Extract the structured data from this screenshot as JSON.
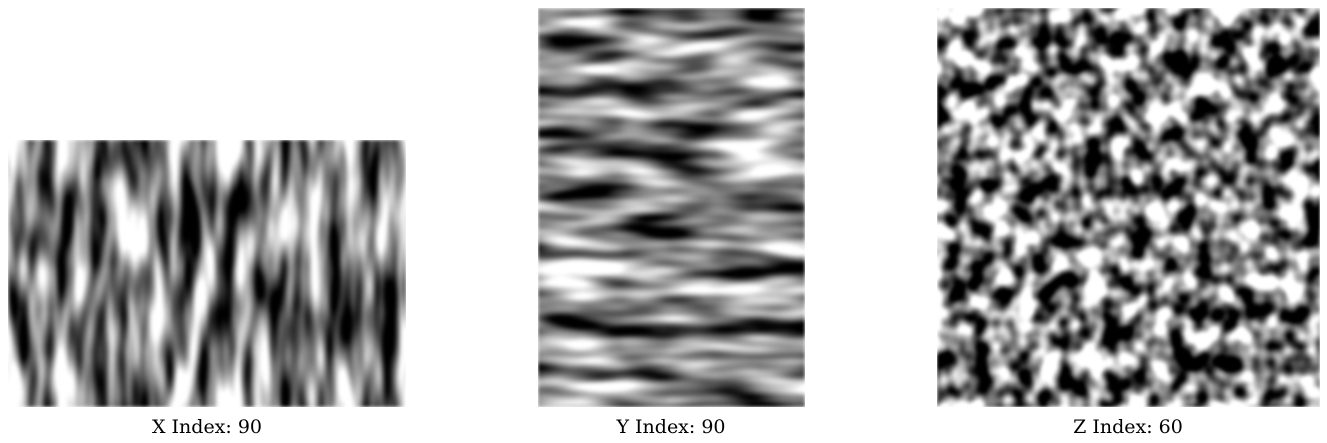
{
  "panels": [
    {
      "caption": "X Index: 90"
    },
    {
      "caption": "Y Index: 90"
    },
    {
      "caption": "Z Index: 60"
    }
  ]
}
